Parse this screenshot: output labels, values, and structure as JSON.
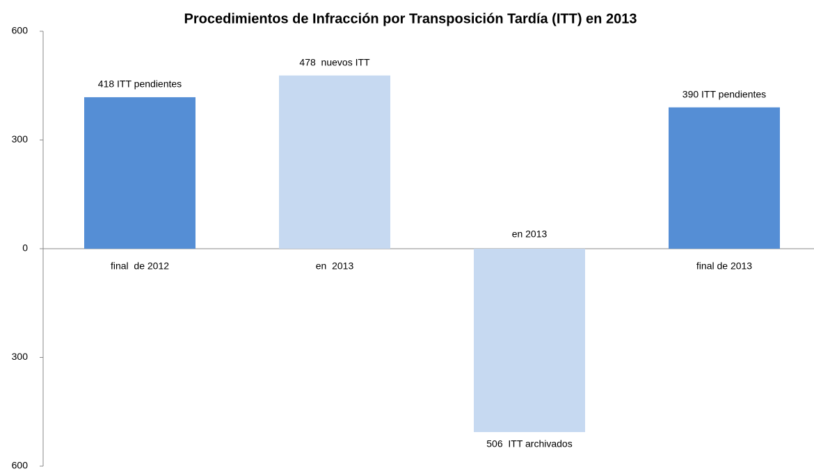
{
  "chart_data": {
    "type": "bar",
    "title": "Procedimientos de Infracción por Transposición Tardía (ITT) en 2013",
    "categories": [
      "final  de 2012",
      "en  2013",
      "en 2013",
      "final de 2013"
    ],
    "values": [
      418,
      478,
      -506,
      390
    ],
    "value_labels": [
      "418 ITT pendientes",
      "478  nuevos ITT",
      "506  ITT archivados",
      "390 ITT pendientes"
    ],
    "colors": [
      "#558ed5",
      "#c6d9f1",
      "#c6d9f1",
      "#558ed5"
    ],
    "ylim": [
      -600,
      600
    ],
    "yticks": [
      {
        "value": -600,
        "label": "600"
      },
      {
        "value": -300,
        "label": "300"
      },
      0,
      300,
      600
    ],
    "grid": false
  }
}
